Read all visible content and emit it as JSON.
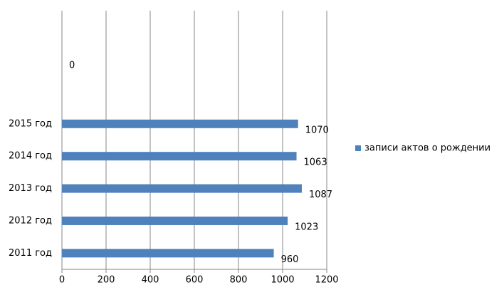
{
  "chart_data": {
    "type": "hbar",
    "categories": [
      "2011 год",
      "2012 год",
      "2013 год",
      "2014 год",
      "2015 год",
      null,
      null,
      null
    ],
    "series": [
      {
        "name": "записи актов о рождении",
        "color": "#4f81bd",
        "values": [
          960,
          1023,
          1087,
          1063,
          1070,
          null,
          0,
          null
        ]
      }
    ],
    "xlim": [
      0,
      1200
    ],
    "xticks": [
      0,
      200,
      400,
      600,
      800,
      1000,
      1200
    ],
    "grid": true,
    "legend": "right"
  }
}
